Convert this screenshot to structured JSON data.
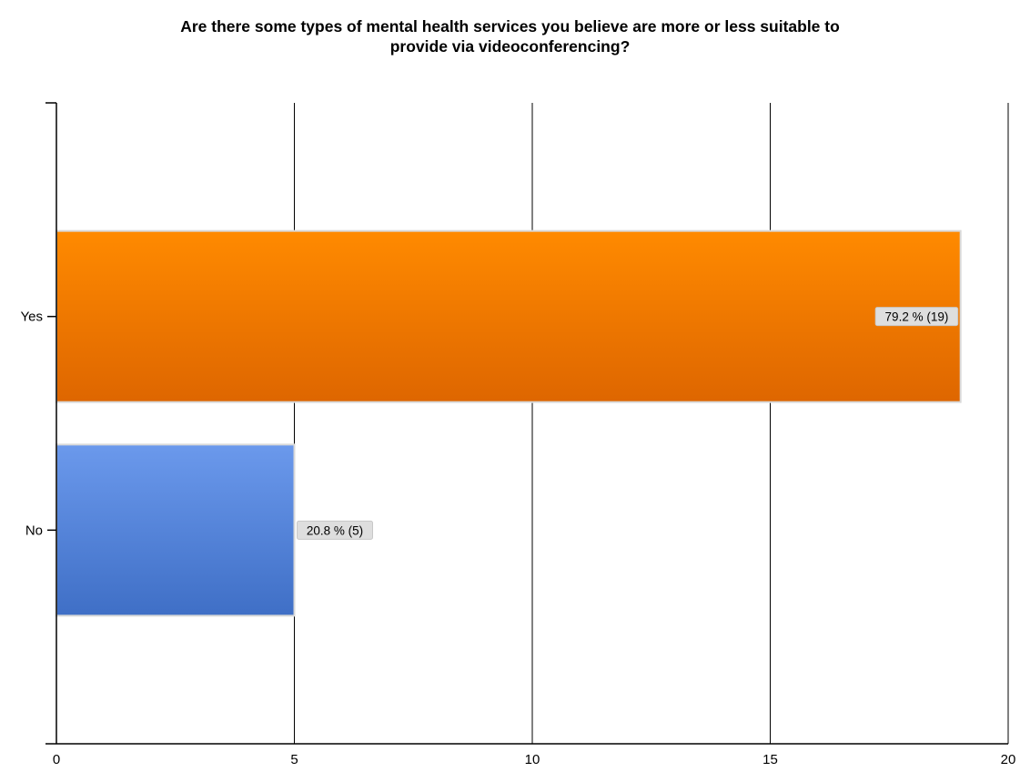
{
  "chart_data": {
    "type": "bar",
    "orientation": "horizontal",
    "title_lines": [
      "Are there some types of mental health services you believe are more or less suitable to",
      "provide via videoconferencing?"
    ],
    "categories": [
      "Yes",
      "No"
    ],
    "values": [
      19,
      5
    ],
    "data_labels": [
      "79.2 % (19)",
      "20.8 % (5)"
    ],
    "xlim": [
      0,
      20
    ],
    "xticks": [
      0,
      5,
      10,
      15,
      20
    ],
    "grid": true,
    "bar_colors": [
      {
        "top": "#ff8a00",
        "bottom": "#de6600"
      },
      {
        "top": "#6b99ec",
        "bottom": "#3f6fc6"
      }
    ]
  }
}
